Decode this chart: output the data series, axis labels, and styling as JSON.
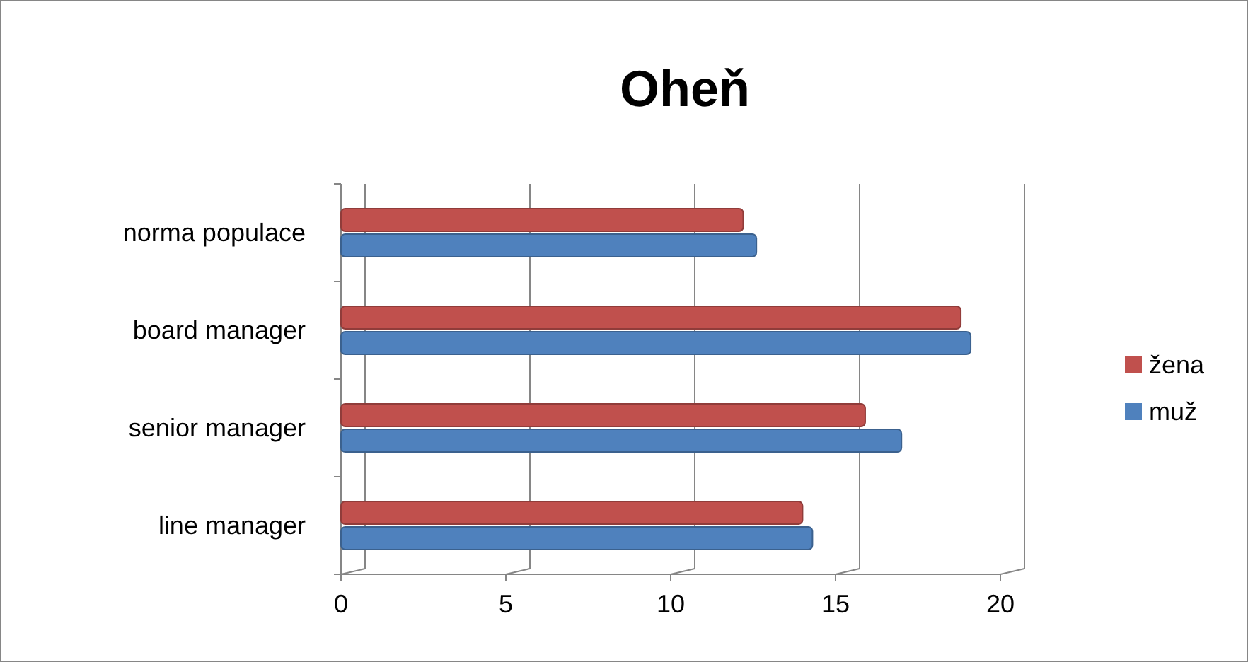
{
  "chart_data": {
    "type": "bar",
    "title": "Oheň",
    "orientation": "horizontal",
    "categories": [
      "norma populace",
      "board manager",
      "senior manager",
      "line manager"
    ],
    "series": [
      {
        "name": "žena",
        "color": "#c0504d",
        "values": [
          12.2,
          18.8,
          15.9,
          14.0
        ]
      },
      {
        "name": "muž",
        "color": "#4f81bd",
        "values": [
          12.6,
          19.1,
          17.0,
          14.3
        ]
      }
    ],
    "xlim": [
      0,
      20
    ],
    "xticks": [
      0,
      5,
      10,
      15,
      20
    ],
    "grid": "x",
    "legend": "right"
  }
}
